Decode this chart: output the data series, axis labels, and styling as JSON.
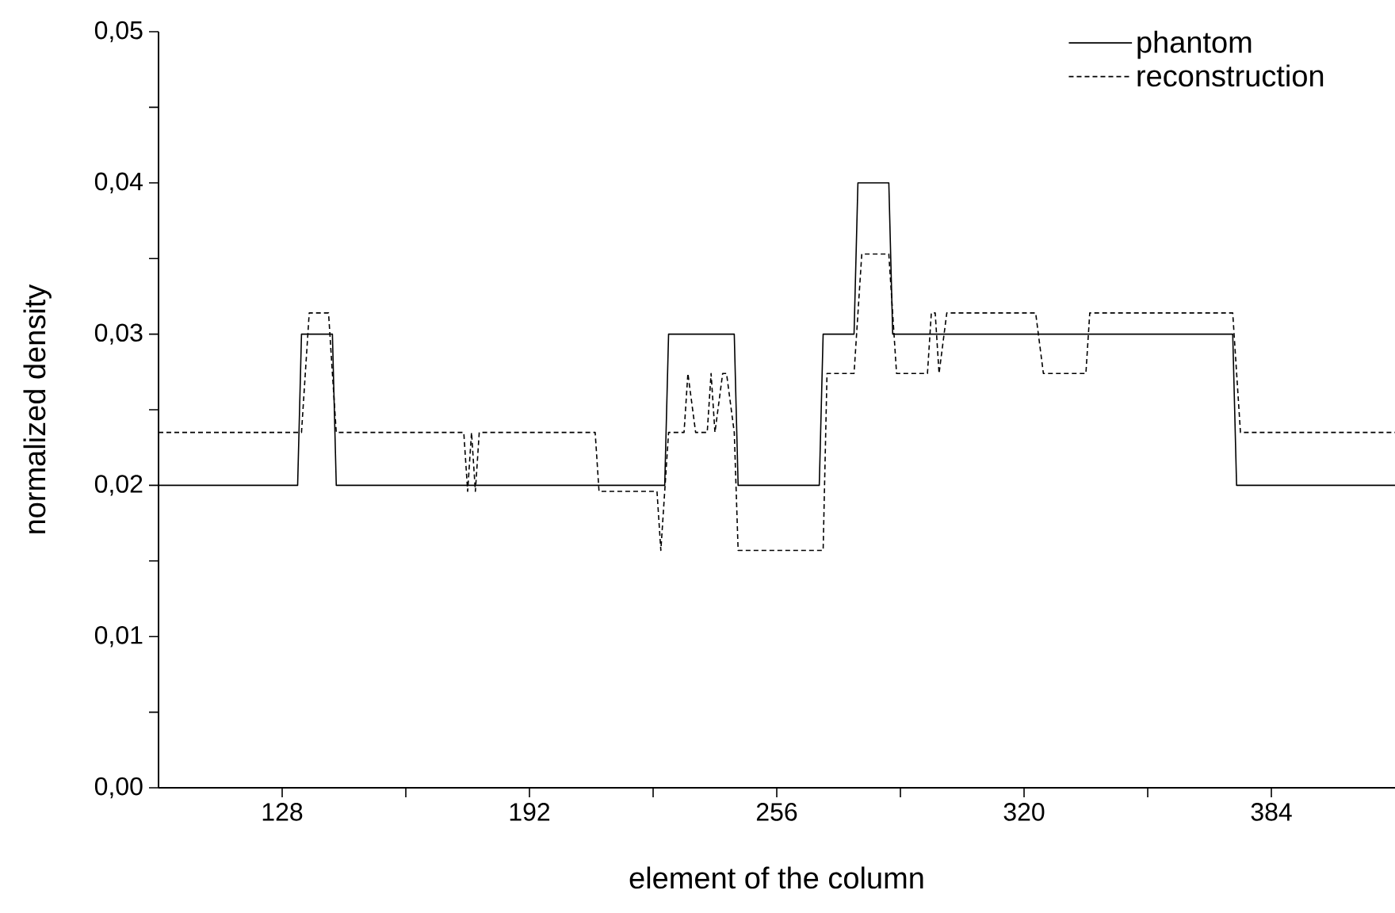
{
  "chart_data": {
    "type": "line",
    "xlabel": "element of the column",
    "ylabel": "normalized density",
    "xlim": [
      96,
      416
    ],
    "ylim": [
      0,
      0.05
    ],
    "xticks": [
      128,
      {
        "value": 160,
        "label": null
      },
      192,
      {
        "value": 224,
        "label": null
      },
      256,
      {
        "value": 288,
        "label": null
      },
      320,
      {
        "value": 352,
        "label": null
      },
      384
    ],
    "yticks": [
      {
        "value": 0,
        "label": "0,00"
      },
      {
        "value": 0.005,
        "label": null
      },
      {
        "value": 0.01,
        "label": "0,01"
      },
      {
        "value": 0.015,
        "label": null
      },
      {
        "value": 0.02,
        "label": "0,02"
      },
      {
        "value": 0.025,
        "label": null
      },
      {
        "value": 0.03,
        "label": "0,03"
      },
      {
        "value": 0.035,
        "label": null
      },
      {
        "value": 0.04,
        "label": "0,04"
      },
      {
        "value": 0.045,
        "label": null
      },
      {
        "value": 0.05,
        "label": "0,05"
      }
    ],
    "grid": false,
    "legend": "top right",
    "marker": "none",
    "series": [
      {
        "name": "phantom",
        "color": "#000000",
        "line_style": "solid",
        "x": [
          96,
          132,
          133,
          141,
          142,
          227,
          228,
          245,
          246,
          267,
          268,
          276,
          277,
          285,
          286,
          374,
          375,
          416
        ],
        "values": [
          0.02,
          0.02,
          0.03,
          0.03,
          0.02,
          0.02,
          0.03,
          0.03,
          0.02,
          0.02,
          0.03,
          0.03,
          0.04,
          0.04,
          0.03,
          0.03,
          0.02,
          0.02
        ]
      },
      {
        "name": "reconstruction",
        "color": "#000000",
        "line_style": "dashed",
        "x": [
          96,
          133,
          135,
          140,
          141,
          142,
          175,
          176,
          177,
          178,
          179,
          209,
          210,
          225,
          226,
          228,
          232,
          233,
          235,
          238,
          239,
          240,
          242,
          243,
          245,
          246,
          268,
          269,
          276,
          278,
          285,
          287,
          295,
          296,
          297,
          298,
          300,
          323,
          325,
          336,
          337,
          374,
          376,
          416
        ],
        "values": [
          0.0235,
          0.0235,
          0.0314,
          0.0314,
          0.0274,
          0.0235,
          0.0235,
          0.0196,
          0.0235,
          0.0196,
          0.0235,
          0.0235,
          0.0196,
          0.0196,
          0.0157,
          0.0235,
          0.0235,
          0.0274,
          0.0235,
          0.0235,
          0.0274,
          0.0235,
          0.0274,
          0.0274,
          0.0235,
          0.0157,
          0.0157,
          0.0274,
          0.0274,
          0.0353,
          0.0353,
          0.0274,
          0.0274,
          0.0314,
          0.0314,
          0.0274,
          0.0314,
          0.0314,
          0.0274,
          0.0274,
          0.0314,
          0.0314,
          0.0235,
          0.0235
        ]
      }
    ]
  }
}
